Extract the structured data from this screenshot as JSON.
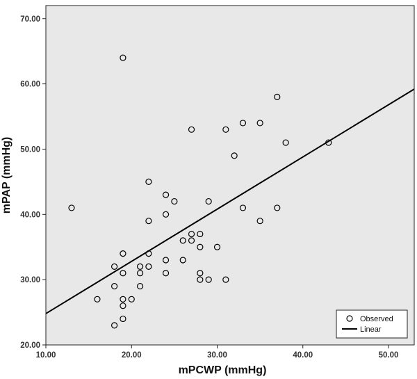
{
  "chart_data": {
    "type": "scatter",
    "xlabel": "mPCWP (mmHg)",
    "ylabel": "mPAP (mmHg)",
    "xlim": [
      10,
      53
    ],
    "ylim": [
      20,
      72
    ],
    "x_ticks": [
      "10.00",
      "20.00",
      "30.00",
      "40.00",
      "50.00"
    ],
    "y_ticks": [
      "20.00",
      "30.00",
      "40.00",
      "50.00",
      "60.00",
      "70.00"
    ],
    "grid": false,
    "legend_position": "bottom-right",
    "plot_background": "#e8e8e8",
    "series": [
      {
        "name": "Observed",
        "marker": "open-circle",
        "points": [
          [
            13,
            41
          ],
          [
            16,
            27
          ],
          [
            18,
            23
          ],
          [
            18,
            29
          ],
          [
            18,
            32
          ],
          [
            19,
            64
          ],
          [
            19,
            34
          ],
          [
            19,
            31
          ],
          [
            19,
            27
          ],
          [
            19,
            26
          ],
          [
            19,
            24
          ],
          [
            20,
            27
          ],
          [
            21,
            32
          ],
          [
            21,
            31
          ],
          [
            21,
            29
          ],
          [
            22,
            45
          ],
          [
            22,
            39
          ],
          [
            22,
            34
          ],
          [
            22,
            32
          ],
          [
            24,
            43
          ],
          [
            24,
            40
          ],
          [
            24,
            33
          ],
          [
            24,
            31
          ],
          [
            25,
            42
          ],
          [
            26,
            36
          ],
          [
            26,
            33
          ],
          [
            27,
            53
          ],
          [
            27,
            37
          ],
          [
            27,
            36
          ],
          [
            28,
            37
          ],
          [
            28,
            35
          ],
          [
            28,
            31
          ],
          [
            28,
            30
          ],
          [
            29,
            42
          ],
          [
            29,
            30
          ],
          [
            30,
            35
          ],
          [
            31,
            53
          ],
          [
            31,
            30
          ],
          [
            32,
            49
          ],
          [
            33,
            54
          ],
          [
            33,
            41
          ],
          [
            35,
            54
          ],
          [
            35,
            39
          ],
          [
            37,
            58
          ],
          [
            37,
            41
          ],
          [
            38,
            51
          ],
          [
            43,
            51
          ]
        ]
      },
      {
        "name": "Linear",
        "type": "line",
        "points": [
          [
            10,
            24.8
          ],
          [
            53,
            59.2
          ]
        ]
      }
    ]
  }
}
